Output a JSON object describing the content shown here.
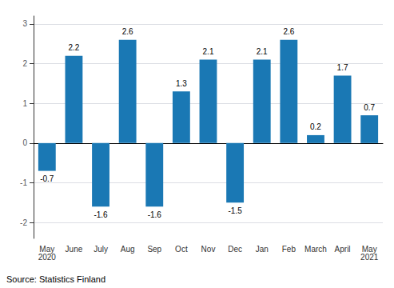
{
  "chart_data": {
    "type": "bar",
    "categories": [
      "May\n2020",
      "June",
      "July",
      "Aug",
      "Sep",
      "Oct",
      "Nov",
      "Dec",
      "Jan",
      "Feb",
      "March",
      "April",
      "May\n2021"
    ],
    "values": [
      -0.7,
      2.2,
      -1.6,
      2.6,
      -1.6,
      1.3,
      2.1,
      -1.5,
      2.1,
      2.6,
      0.2,
      1.7,
      0.7
    ],
    "color": "#1a78b4",
    "ylim": [
      -2.4,
      3.2
    ],
    "yticks": [
      -2,
      -1,
      0,
      1,
      2,
      3
    ],
    "grid": true,
    "data_labels": true,
    "annotations": [
      "Source: Statistics Finland"
    ]
  }
}
